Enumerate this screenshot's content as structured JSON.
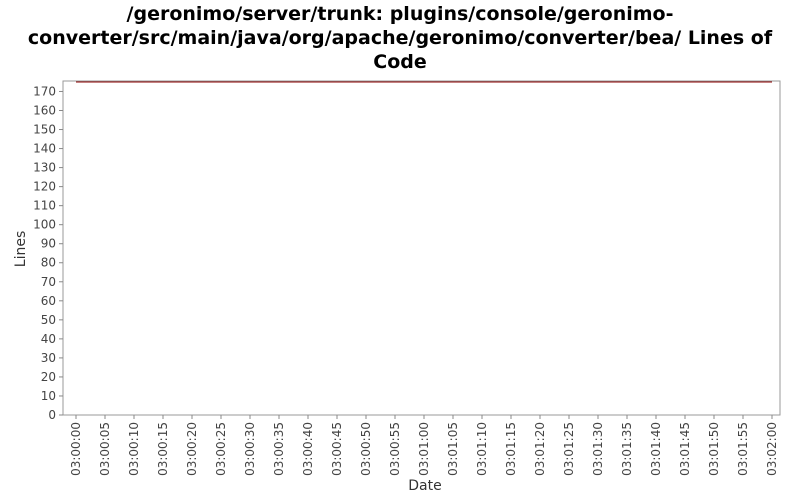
{
  "chart_data": {
    "type": "line",
    "title_lines": [
      "/geronimo/server/trunk: plugins/console/geronimo-",
      "converter/src/main/java/org/apache/geronimo/converter/bea/ Lines of",
      "Code"
    ],
    "xlabel": "Date",
    "ylabel": "Lines",
    "x_ticks": [
      "03:00:00",
      "03:00:05",
      "03:00:10",
      "03:00:15",
      "03:00:20",
      "03:00:25",
      "03:00:30",
      "03:00:35",
      "03:00:40",
      "03:00:45",
      "03:00:50",
      "03:00:55",
      "03:01:00",
      "03:01:05",
      "03:01:10",
      "03:01:15",
      "03:01:20",
      "03:01:25",
      "03:01:30",
      "03:01:35",
      "03:01:40",
      "03:01:45",
      "03:01:50",
      "03:01:55",
      "03:02:00"
    ],
    "y_ticks": [
      0,
      10,
      20,
      30,
      40,
      50,
      60,
      70,
      80,
      90,
      100,
      110,
      120,
      130,
      140,
      150,
      160,
      170
    ],
    "ylim": [
      0,
      175.5
    ],
    "series": [
      {
        "color": "#8b0000",
        "points": [
          {
            "x": "03:00:00",
            "y": 175
          },
          {
            "x": "03:02:00",
            "y": 175
          }
        ]
      }
    ],
    "grid": false,
    "legend": "none"
  }
}
